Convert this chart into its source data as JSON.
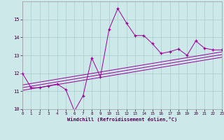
{
  "xlabel": "Windchill (Refroidissement éolien,°C)",
  "x_data": [
    0,
    1,
    2,
    3,
    4,
    5,
    6,
    7,
    8,
    9,
    10,
    11,
    12,
    13,
    14,
    15,
    16,
    17,
    18,
    19,
    20,
    21,
    22,
    23
  ],
  "y_main": [
    12.0,
    11.2,
    11.2,
    11.3,
    11.4,
    11.1,
    9.9,
    10.75,
    12.85,
    11.8,
    14.45,
    15.6,
    14.8,
    14.1,
    14.1,
    13.65,
    13.1,
    13.2,
    13.35,
    13.0,
    13.8,
    13.4,
    13.3,
    13.3
  ],
  "y_line1": [
    11.05,
    11.13,
    11.21,
    11.29,
    11.37,
    11.45,
    11.53,
    11.61,
    11.69,
    11.77,
    11.85,
    11.93,
    12.01,
    12.09,
    12.17,
    12.25,
    12.33,
    12.41,
    12.49,
    12.57,
    12.65,
    12.73,
    12.81,
    12.89
  ],
  "y_line2": [
    11.2,
    11.28,
    11.36,
    11.44,
    11.52,
    11.6,
    11.68,
    11.76,
    11.84,
    11.92,
    12.0,
    12.08,
    12.16,
    12.24,
    12.32,
    12.4,
    12.48,
    12.56,
    12.64,
    12.72,
    12.8,
    12.88,
    12.96,
    13.04
  ],
  "y_line3": [
    11.35,
    11.43,
    11.51,
    11.59,
    11.67,
    11.75,
    11.83,
    11.91,
    11.99,
    12.07,
    12.15,
    12.23,
    12.31,
    12.39,
    12.47,
    12.55,
    12.63,
    12.71,
    12.79,
    12.87,
    12.95,
    13.03,
    13.11,
    13.19
  ],
  "line_color": "#990099",
  "bg_color": "#cce8e8",
  "grid_color": "#aacccc",
  "ylim": [
    10,
    16
  ],
  "xlim": [
    0,
    23
  ],
  "yticks": [
    10,
    11,
    12,
    13,
    14,
    15
  ],
  "xticks": [
    0,
    1,
    2,
    3,
    4,
    5,
    6,
    7,
    8,
    9,
    10,
    11,
    12,
    13,
    14,
    15,
    16,
    17,
    18,
    19,
    20,
    21,
    22,
    23
  ]
}
